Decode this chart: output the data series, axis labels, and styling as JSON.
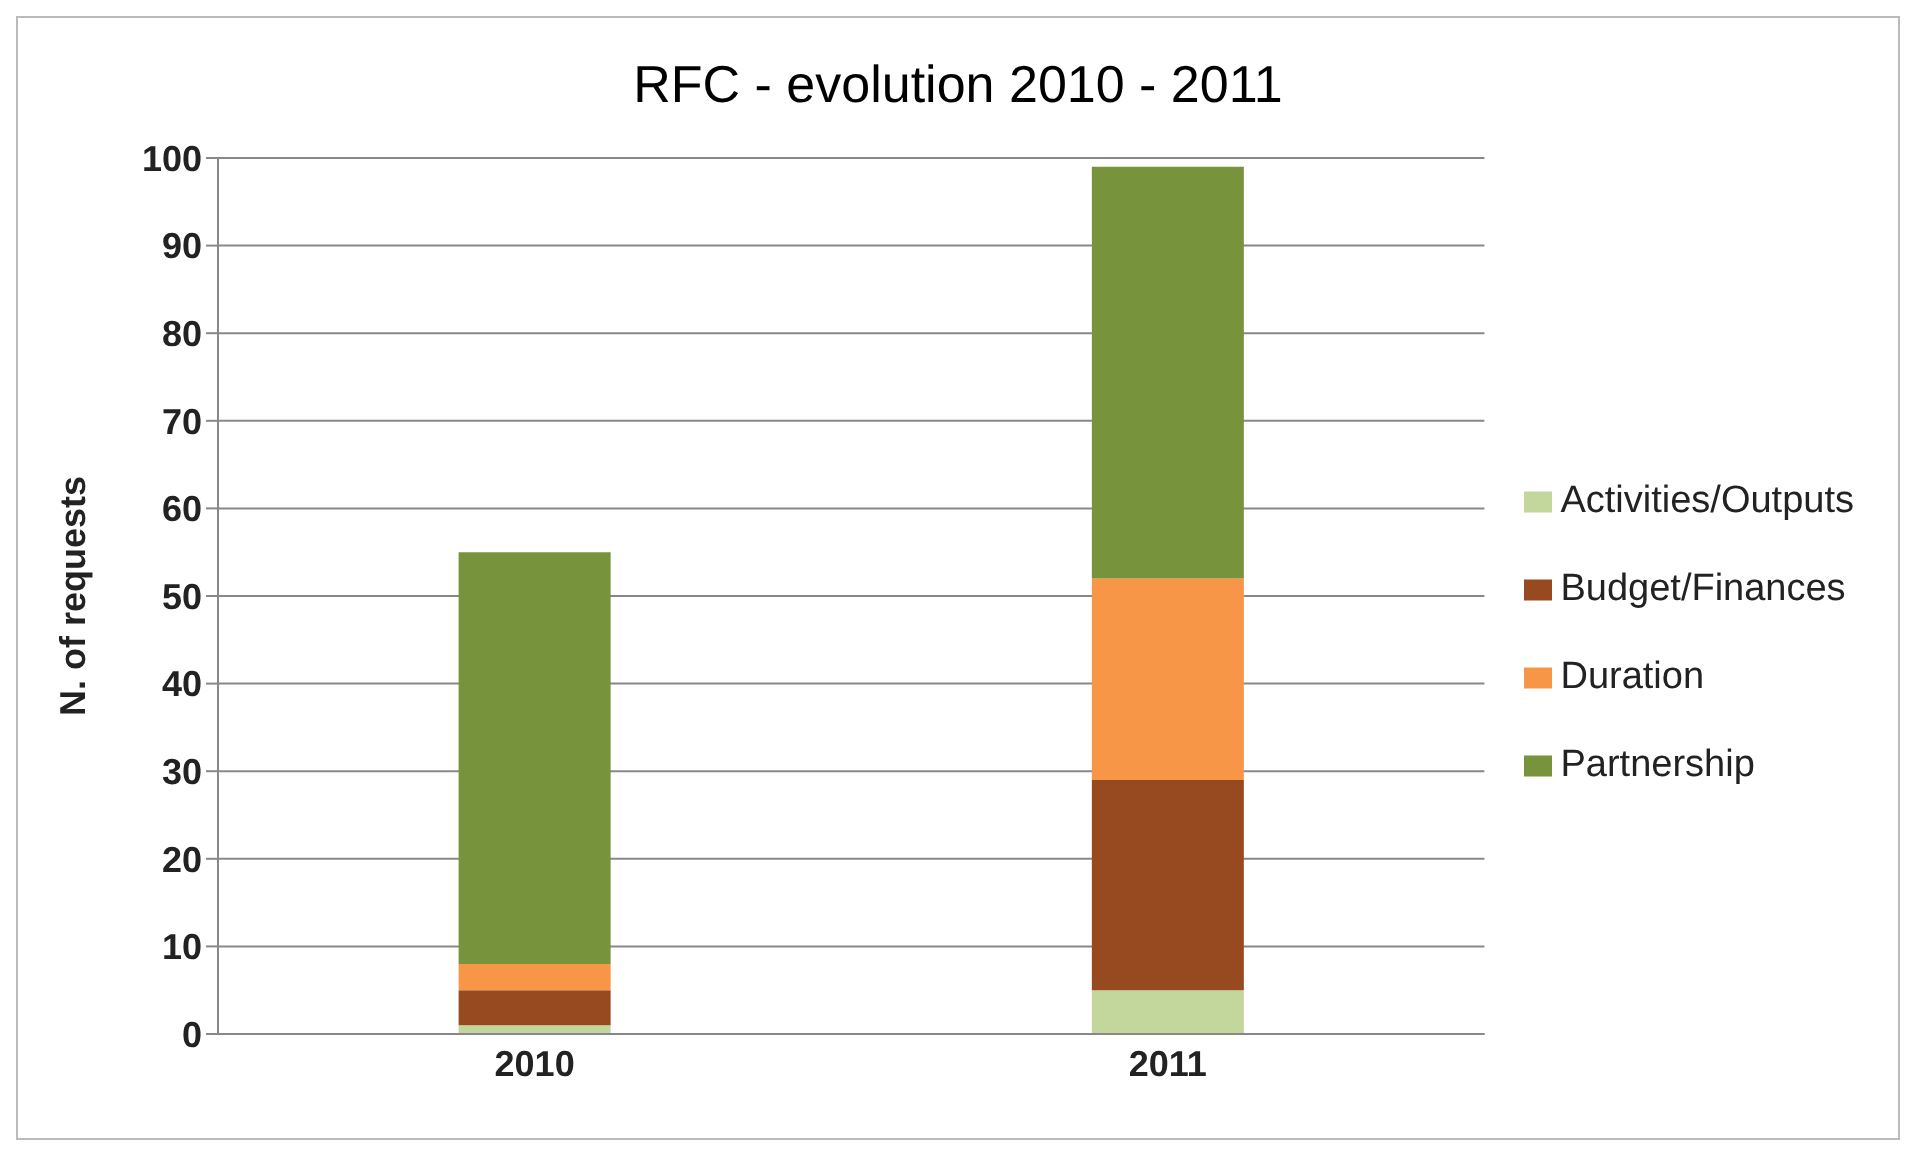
{
  "chart_data": {
    "type": "bar",
    "title": "RFC - evolution 2010 - 2011",
    "ylabel": "N. of requests",
    "categories": [
      "2010",
      "2011"
    ],
    "stacked": true,
    "series": [
      {
        "name": "Activities/Outputs",
        "color": "#c3d69b",
        "values": [
          1,
          5
        ]
      },
      {
        "name": "Budget/Finances",
        "color": "#974a20",
        "values": [
          4,
          24
        ]
      },
      {
        "name": "Duration",
        "color": "#f79646",
        "values": [
          3,
          23
        ]
      },
      {
        "name": "Partnership",
        "color": "#77933c",
        "values": [
          47,
          47
        ]
      }
    ],
    "ylim": [
      0,
      100
    ],
    "yticks": [
      0,
      10,
      20,
      30,
      40,
      50,
      60,
      70,
      80,
      90,
      100
    ],
    "grid": "y",
    "legend": "right"
  }
}
